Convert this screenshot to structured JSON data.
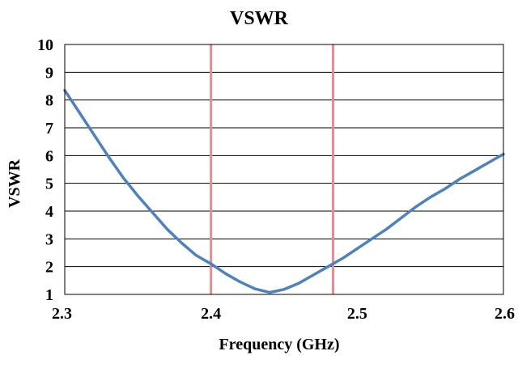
{
  "chart_data": {
    "type": "line",
    "title": "VSWR",
    "xlabel": "Frequency (GHz)",
    "ylabel": "VSWR",
    "xlim": [
      2.3,
      2.6
    ],
    "ylim": [
      1,
      10
    ],
    "x_ticks": [
      "2.3",
      "2.4",
      "2.5",
      "2.6"
    ],
    "y_ticks": [
      "1",
      "2",
      "3",
      "4",
      "5",
      "6",
      "7",
      "8",
      "9",
      "10"
    ],
    "grid": "horizontal",
    "legend": "none",
    "reference_lines_x": [
      2.4,
      2.4835
    ],
    "series": [
      {
        "color": "#4f81bd",
        "x": [
          2.3,
          2.31,
          2.32,
          2.33,
          2.34,
          2.35,
          2.36,
          2.37,
          2.38,
          2.39,
          2.4,
          2.41,
          2.42,
          2.43,
          2.44,
          2.45,
          2.46,
          2.47,
          2.48,
          2.49,
          2.5,
          2.51,
          2.52,
          2.53,
          2.54,
          2.55,
          2.56,
          2.57,
          2.58,
          2.59,
          2.6
        ],
        "y": [
          8.35,
          7.55,
          6.75,
          5.95,
          5.2,
          4.55,
          3.95,
          3.35,
          2.85,
          2.4,
          2.1,
          1.75,
          1.45,
          1.2,
          1.07,
          1.18,
          1.4,
          1.7,
          2.0,
          2.3,
          2.65,
          3.0,
          3.35,
          3.75,
          4.15,
          4.5,
          4.8,
          5.15,
          5.45,
          5.75,
          6.05
        ]
      }
    ],
    "colors": {
      "series": "#4f81bd",
      "reference_line": "#e09090",
      "grid": "#000000"
    }
  }
}
